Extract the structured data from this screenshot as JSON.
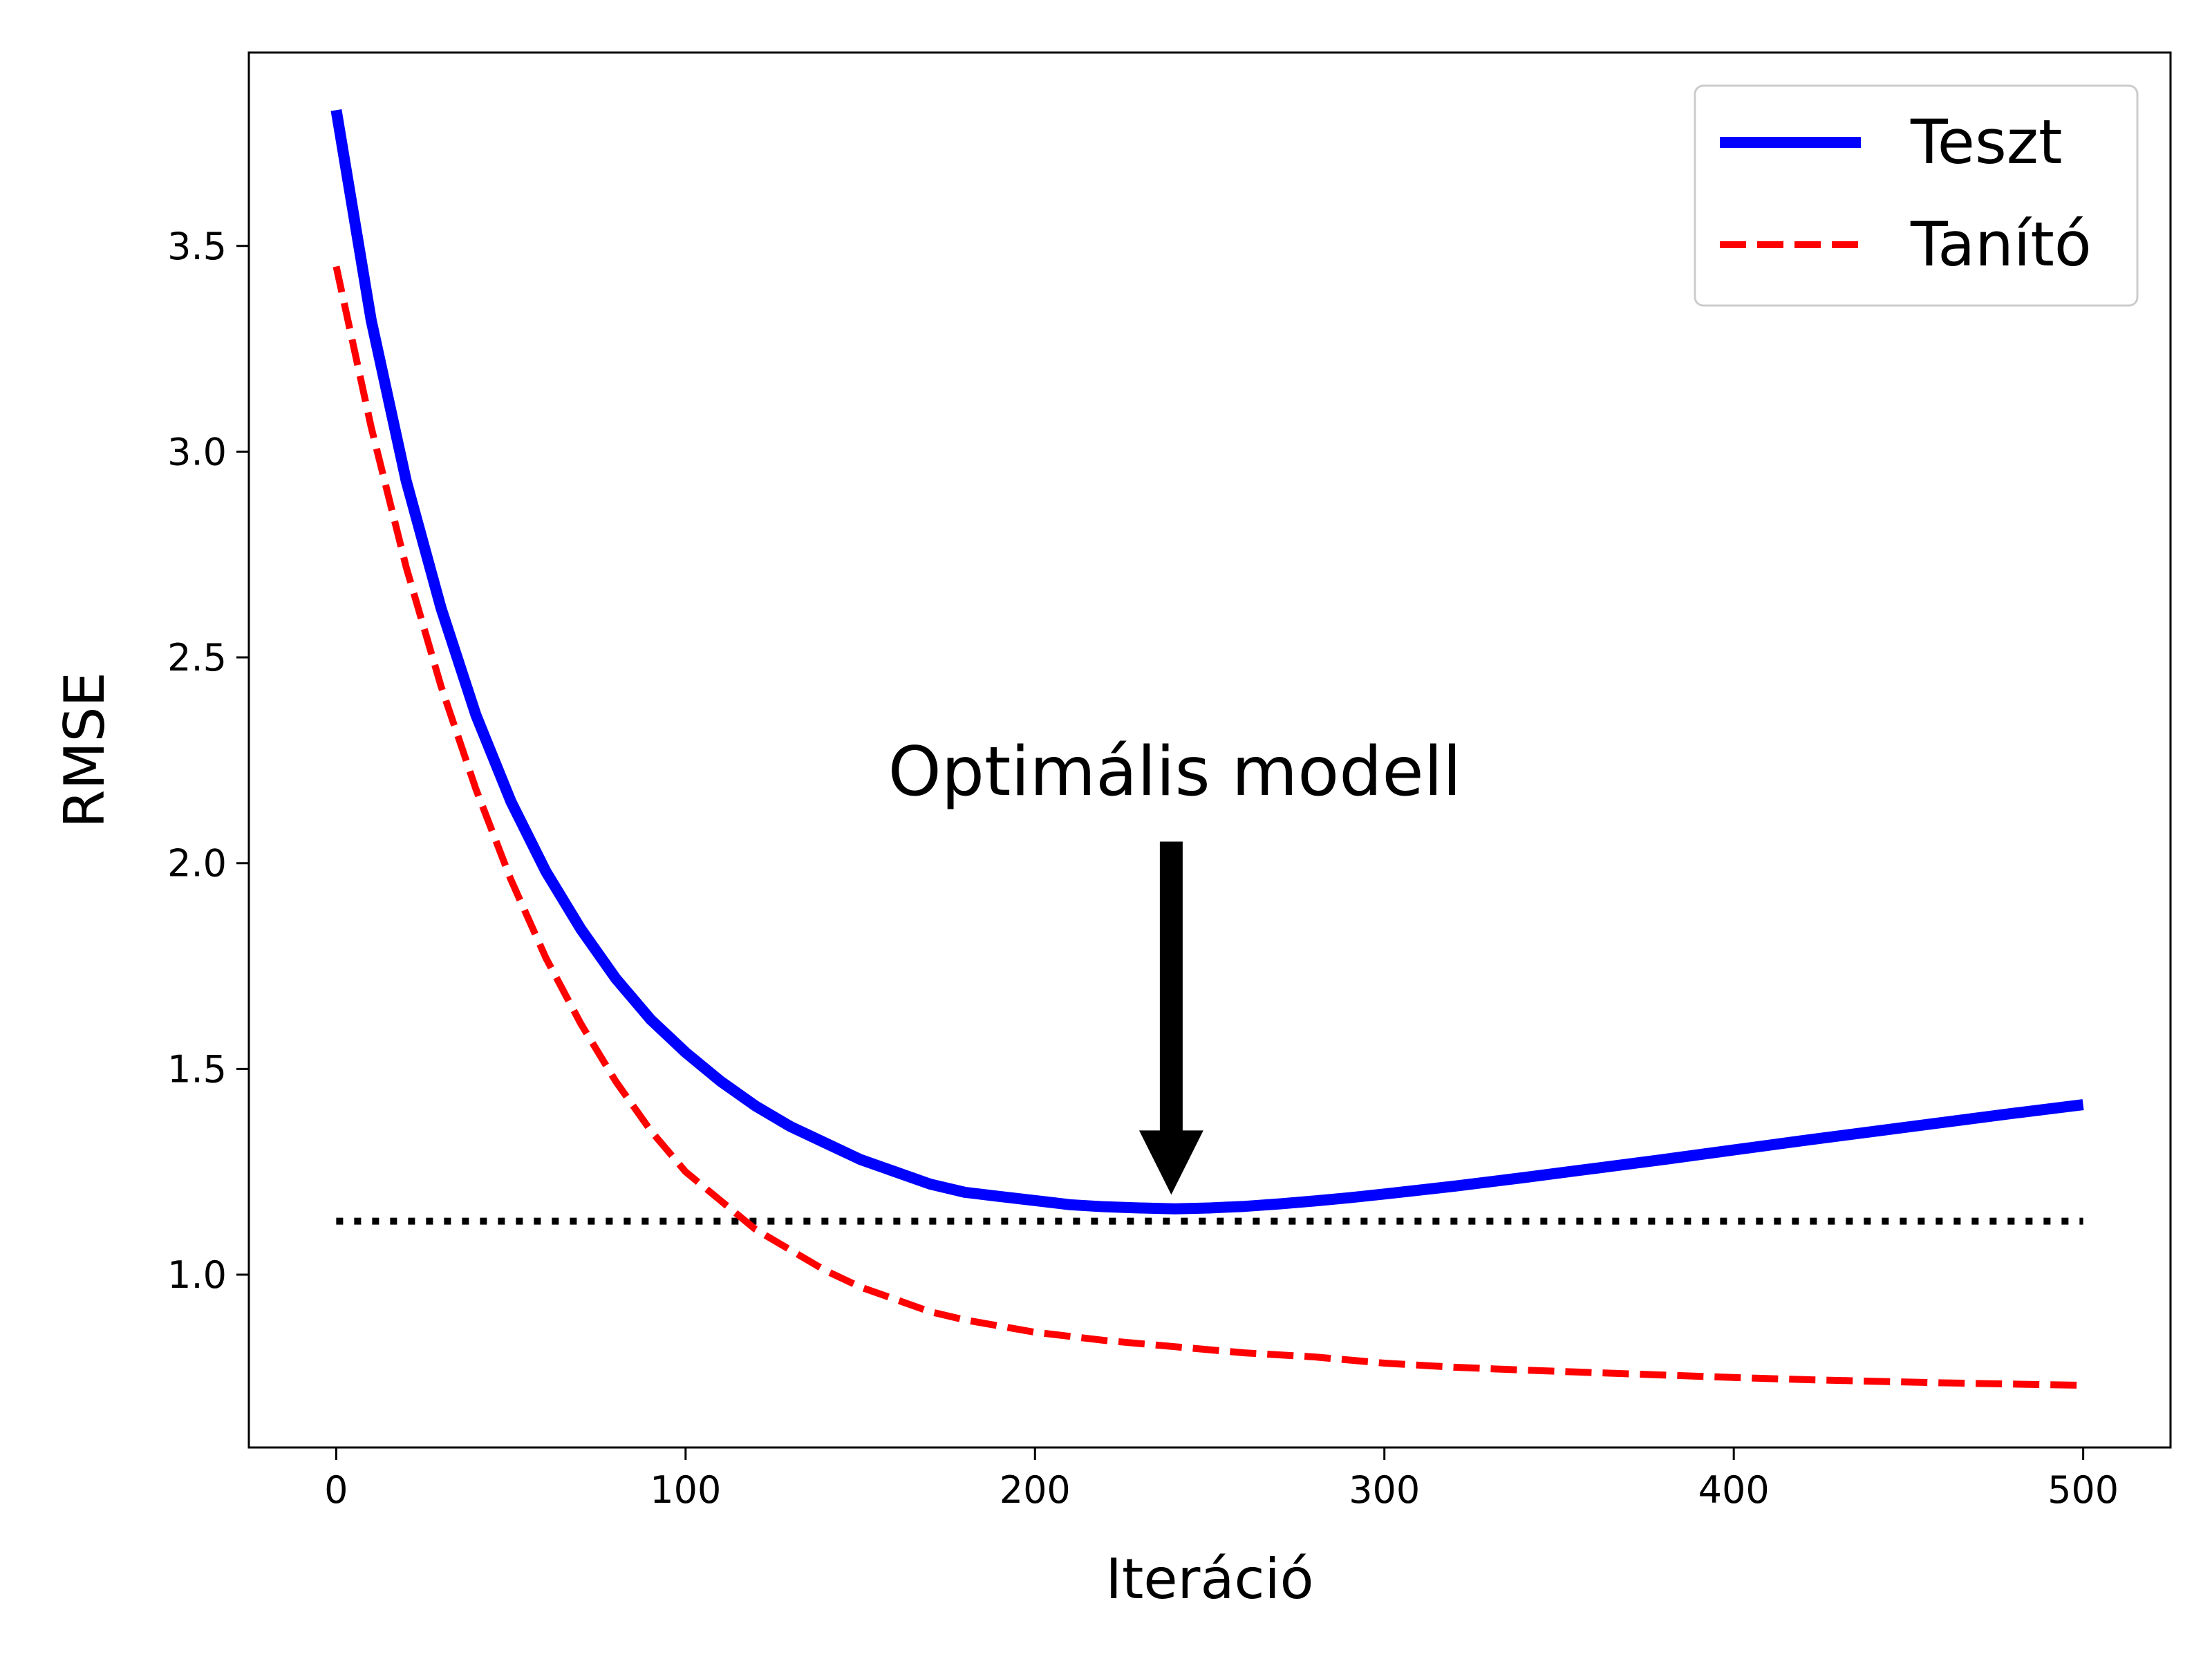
{
  "chart_data": {
    "type": "line",
    "title": "",
    "xlabel": "Iteráció",
    "ylabel": "RMSE",
    "xlim": [
      -25,
      525
    ],
    "ylim": [
      0.58,
      3.97
    ],
    "x_ticks": [
      0,
      100,
      200,
      300,
      400,
      500
    ],
    "y_ticks": [
      1.0,
      1.5,
      2.0,
      2.5,
      3.0,
      3.5
    ],
    "x_tick_labels": [
      "0",
      "100",
      "200",
      "300",
      "400",
      "500"
    ],
    "y_tick_labels": [
      "1.0",
      "1.5",
      "2.0",
      "2.5",
      "3.0",
      "3.5"
    ],
    "grid": false,
    "legend_position": "top-right",
    "series": [
      {
        "name": "Teszt",
        "color": "#0000ff",
        "style": "solid",
        "x": [
          0,
          10,
          20,
          30,
          40,
          50,
          60,
          70,
          80,
          90,
          100,
          110,
          120,
          130,
          140,
          150,
          160,
          170,
          180,
          190,
          200,
          210,
          220,
          230,
          240,
          250,
          260,
          270,
          280,
          290,
          300,
          320,
          340,
          360,
          380,
          400,
          420,
          440,
          460,
          480,
          500
        ],
        "y": [
          3.83,
          3.32,
          2.93,
          2.62,
          2.36,
          2.15,
          1.98,
          1.84,
          1.72,
          1.62,
          1.54,
          1.47,
          1.41,
          1.36,
          1.32,
          1.28,
          1.25,
          1.22,
          1.2,
          1.19,
          1.18,
          1.17,
          1.165,
          1.162,
          1.16,
          1.162,
          1.166,
          1.172,
          1.179,
          1.187,
          1.196,
          1.215,
          1.236,
          1.258,
          1.28,
          1.303,
          1.326,
          1.348,
          1.37,
          1.392,
          1.413
        ]
      },
      {
        "name": "Tanító",
        "color": "#ff0000",
        "style": "dashed",
        "x": [
          0,
          10,
          20,
          30,
          40,
          50,
          60,
          70,
          80,
          90,
          100,
          110,
          120,
          130,
          140,
          150,
          160,
          170,
          180,
          190,
          200,
          220,
          240,
          260,
          280,
          300,
          320,
          340,
          360,
          380,
          400,
          420,
          440,
          460,
          480,
          500
        ],
        "y": [
          3.45,
          3.06,
          2.72,
          2.43,
          2.18,
          1.96,
          1.77,
          1.61,
          1.47,
          1.35,
          1.25,
          1.18,
          1.11,
          1.06,
          1.01,
          0.97,
          0.94,
          0.91,
          0.89,
          0.875,
          0.86,
          0.84,
          0.825,
          0.81,
          0.8,
          0.785,
          0.775,
          0.768,
          0.762,
          0.756,
          0.75,
          0.745,
          0.741,
          0.737,
          0.734,
          0.731
        ]
      }
    ],
    "reference_line": {
      "y": 1.13,
      "x": [
        0,
        500
      ],
      "color": "#000000",
      "style": "dotted"
    },
    "annotation": {
      "text": "Optimális modell",
      "arrow_x": 239,
      "arrow_tail_y": 2.05,
      "arrow_head_y": 1.2
    }
  }
}
